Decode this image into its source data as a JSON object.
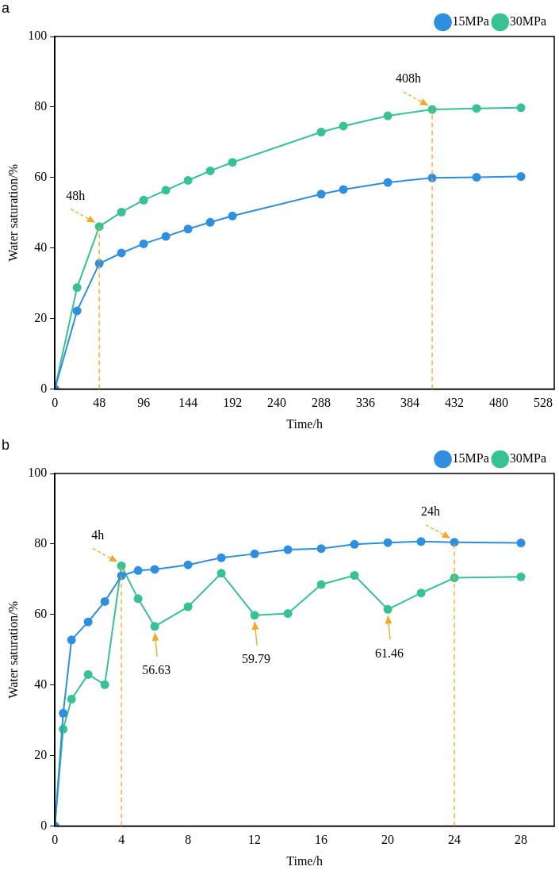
{
  "chart_data": [
    {
      "type": "line",
      "title": "a",
      "xlabel": "Time/h",
      "ylabel": "Water saturation/%",
      "x": [
        0,
        24,
        48,
        72,
        96,
        120,
        144,
        168,
        192,
        288,
        312,
        360,
        408,
        456,
        504
      ],
      "series": [
        {
          "name": "15MPa",
          "color": "#2e8ee0",
          "values": [
            0,
            22.2,
            35.6,
            38.6,
            41.2,
            43.3,
            45.4,
            47.3,
            49.1,
            55.3,
            56.6,
            58.6,
            59.9,
            60.1,
            60.3
          ]
        },
        {
          "name": "30MPa",
          "color": "#36c293",
          "values": [
            0,
            28.8,
            46.1,
            50.2,
            53.6,
            56.4,
            59.2,
            61.9,
            64.3,
            72.9,
            74.6,
            77.5,
            79.3,
            79.6,
            79.8
          ]
        }
      ],
      "xlim": [
        0,
        540
      ],
      "xticks": [
        0,
        48,
        96,
        144,
        192,
        240,
        288,
        336,
        384,
        432,
        480,
        528
      ],
      "ylim": [
        0,
        100
      ],
      "yticks": [
        0,
        20,
        40,
        60,
        80,
        100
      ],
      "ref_lines": [
        {
          "axis": "x",
          "value": 48,
          "label": null,
          "color": "#f5a623",
          "line_style": "dashed"
        },
        {
          "axis": "x",
          "value": 408,
          "label": null,
          "color": "#f5a623",
          "line_style": "dashed"
        }
      ],
      "annotations": [
        {
          "text": "48h",
          "x": 48,
          "y": 46.1
        },
        {
          "text": "408h",
          "x": 408,
          "y": 79.3
        }
      ],
      "legend": "top right",
      "marker": "circle",
      "line_style": "solid",
      "grid": false
    },
    {
      "type": "line",
      "title": "b",
      "xlabel": "Time/h",
      "ylabel": "Water saturation/%",
      "x": [
        0,
        0.5,
        1,
        2,
        3,
        4,
        5,
        6,
        8,
        10,
        12,
        14,
        16,
        18,
        20,
        22,
        24,
        28
      ],
      "series": [
        {
          "name": "15MPa",
          "color": "#2e8ee0",
          "values": [
            0,
            32.0,
            52.8,
            57.9,
            63.7,
            71.0,
            72.5,
            72.8,
            74.1,
            76.1,
            77.2,
            78.4,
            78.7,
            79.9,
            80.4,
            80.7,
            80.5,
            80.3
          ]
        },
        {
          "name": "30MPa",
          "color": "#36c293",
          "values": [
            0,
            27.5,
            36.0,
            43.0,
            40.1,
            73.8,
            64.5,
            56.63,
            62.2,
            71.7,
            59.79,
            60.3,
            68.5,
            71.1,
            61.46,
            66.1,
            70.4,
            70.7
          ]
        }
      ],
      "xlim": [
        0,
        30
      ],
      "xticks": [
        0,
        4,
        8,
        12,
        16,
        20,
        24,
        28
      ],
      "ylim": [
        0,
        100
      ],
      "yticks": [
        0,
        20,
        40,
        60,
        80,
        100
      ],
      "ref_lines": [
        {
          "axis": "x",
          "value": 4,
          "label": null,
          "color": "#f5a623",
          "line_style": "dashed"
        },
        {
          "axis": "x",
          "value": 24,
          "label": null,
          "color": "#f5a623",
          "line_style": "dashed"
        }
      ],
      "annotations": [
        {
          "text": "4h",
          "x": 4,
          "y": 73.8
        },
        {
          "text": "56.63",
          "x": 6,
          "y": 56.63
        },
        {
          "text": "59.79",
          "x": 12,
          "y": 59.79
        },
        {
          "text": "61.46",
          "x": 20,
          "y": 61.46
        },
        {
          "text": "24h",
          "x": 24,
          "y": 80.5
        }
      ],
      "legend": "top right",
      "marker": "circle",
      "line_style": "solid",
      "grid": false
    }
  ]
}
